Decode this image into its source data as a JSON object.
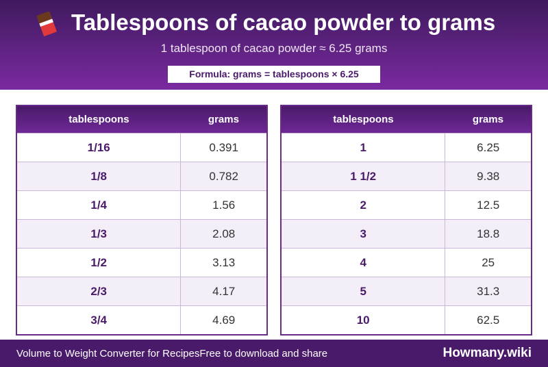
{
  "header": {
    "title": "Tablespoons of cacao powder to grams",
    "subtitle": "1 tablespoon of cacao powder ≈ 6.25 grams",
    "formula": "Formula: grams = tablespoons × 6.25"
  },
  "tables": [
    {
      "columns": [
        "tablespoons",
        "grams"
      ],
      "rows": [
        [
          "1/16",
          "0.391"
        ],
        [
          "1/8",
          "0.782"
        ],
        [
          "1/4",
          "1.56"
        ],
        [
          "1/3",
          "2.08"
        ],
        [
          "1/2",
          "3.13"
        ],
        [
          "2/3",
          "4.17"
        ],
        [
          "3/4",
          "4.69"
        ]
      ]
    },
    {
      "columns": [
        "tablespoons",
        "grams"
      ],
      "rows": [
        [
          "1",
          "6.25"
        ],
        [
          "1 1/2",
          "9.38"
        ],
        [
          "2",
          "12.5"
        ],
        [
          "3",
          "18.8"
        ],
        [
          "4",
          "25"
        ],
        [
          "5",
          "31.3"
        ],
        [
          "10",
          "62.5"
        ]
      ]
    }
  ],
  "footer": {
    "left": "Volume to Weight Converter for Recipes",
    "middle": "Free to download and share",
    "brand": "Howmany.wiki"
  }
}
